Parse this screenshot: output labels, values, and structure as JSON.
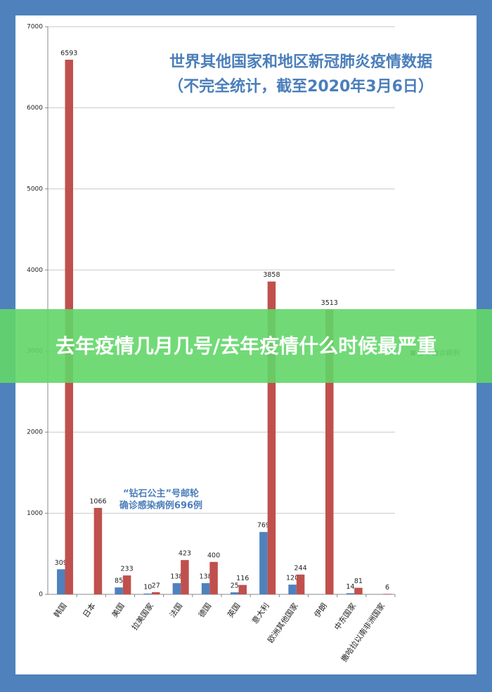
{
  "chart_data": {
    "type": "bar",
    "title": "世界其他国家和地区新冠肺炎疫情数据",
    "subtitle": "（不完全统计，截至2020年3月6日）",
    "annotation": [
      "“钻石公主”号邮轮",
      "确诊感染病例696例"
    ],
    "categories": [
      "韩国",
      "日本",
      "美国",
      "拉美国家",
      "法国",
      "德国",
      "英国",
      "意大利",
      "欧洲其他国家",
      "伊朗",
      "中东国家",
      "撒哈拉以南非洲国家"
    ],
    "series": [
      {
        "color": "#4f81bd",
        "values": [
          309,
          null,
          85,
          10,
          138,
          138,
          25,
          769,
          120,
          null,
          14,
          null
        ]
      },
      {
        "name": "累计确诊病例",
        "color": "#c0504d",
        "values": [
          6593,
          1066,
          233,
          27,
          423,
          400,
          116,
          3858,
          244,
          3513,
          81,
          6
        ]
      }
    ],
    "ylim": [
      0,
      7000
    ],
    "yticks": [
      0,
      1000,
      2000,
      3000,
      4000,
      5000,
      6000,
      7000
    ],
    "grid": true
  },
  "banner": {
    "text": "去年疫情几月几号/去年疫情什么时候最严重"
  }
}
